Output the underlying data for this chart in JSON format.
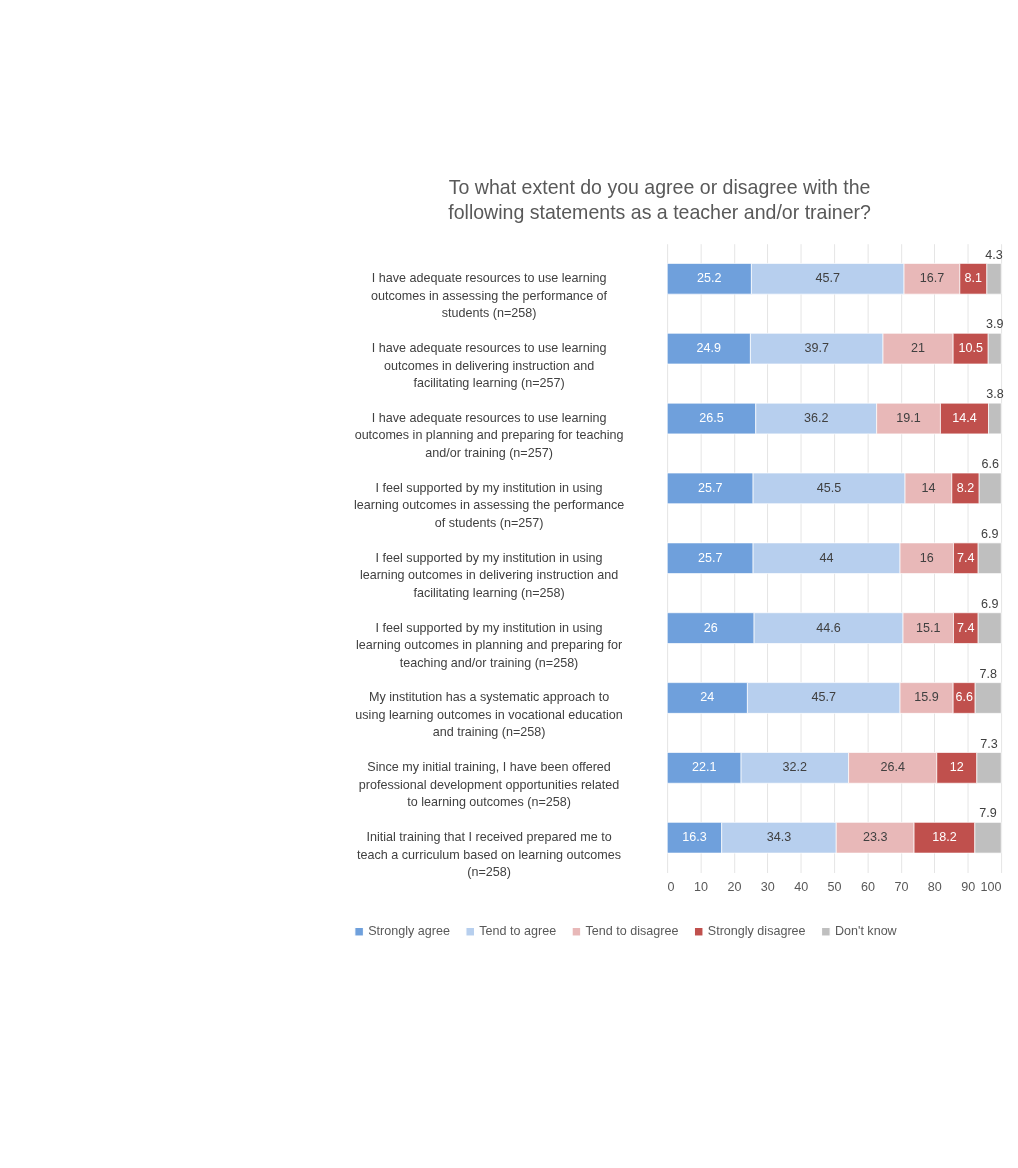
{
  "chart_data": {
    "type": "bar",
    "orientation": "horizontal",
    "stacked": true,
    "title": "To what extent do you agree or disagree with the following statements as a teacher and/or trainer?",
    "categories": [
      "I have adequate resources to use learning outcomes in assessing the performance of students (n=258)",
      "I have adequate resources to use learning outcomes in delivering instruction and facilitating learning (n=257)",
      "I have adequate resources to use learning outcomes in planning and preparing for teaching and/or training (n=257)",
      "I feel supported by my institution in using learning outcomes in assessing the performance of students (n=257)",
      "I feel supported by my institution in using learning outcomes in delivering instruction and facilitating learning (n=258)",
      "I feel supported by my institution in using learning outcomes in planning and preparing for teaching and/or training (n=258)",
      "My institution has a systematic approach to using learning outcomes in vocational education and training (n=258)",
      "Since my initial training, I have been offered professional development opportunities related to learning outcomes (n=258)",
      "Initial training that I received prepared me to teach a curriculum based on learning outcomes (n=258)"
    ],
    "series": [
      {
        "name": "Strongly agree",
        "color": "#6fa0dc",
        "values": [
          25.2,
          24.9,
          26.5,
          25.7,
          25.7,
          26,
          24,
          22.1,
          16.3
        ]
      },
      {
        "name": "Tend to agree",
        "color": "#b7cfee",
        "values": [
          45.7,
          39.7,
          36.2,
          45.5,
          44,
          44.6,
          45.7,
          32.2,
          34.3
        ]
      },
      {
        "name": "Tend to disagree",
        "color": "#e8b8b8",
        "values": [
          16.7,
          21,
          19.1,
          14,
          16,
          15.1,
          15.9,
          26.4,
          23.3
        ]
      },
      {
        "name": "Strongly disagree",
        "color": "#c0504d",
        "values": [
          8.1,
          10.5,
          14.4,
          8.2,
          7.4,
          7.4,
          6.6,
          12,
          18.2
        ]
      },
      {
        "name": "Don't know",
        "color": "#bfbfbf",
        "values": [
          4.3,
          3.9,
          3.8,
          6.6,
          6.9,
          6.9,
          7.8,
          7.3,
          7.9
        ]
      }
    ],
    "xlim": [
      0,
      100
    ],
    "xticks": [
      0,
      10,
      20,
      30,
      40,
      50,
      60,
      70,
      80,
      90,
      100
    ],
    "grid": "x",
    "legend": "bottom",
    "data_labels": true
  }
}
